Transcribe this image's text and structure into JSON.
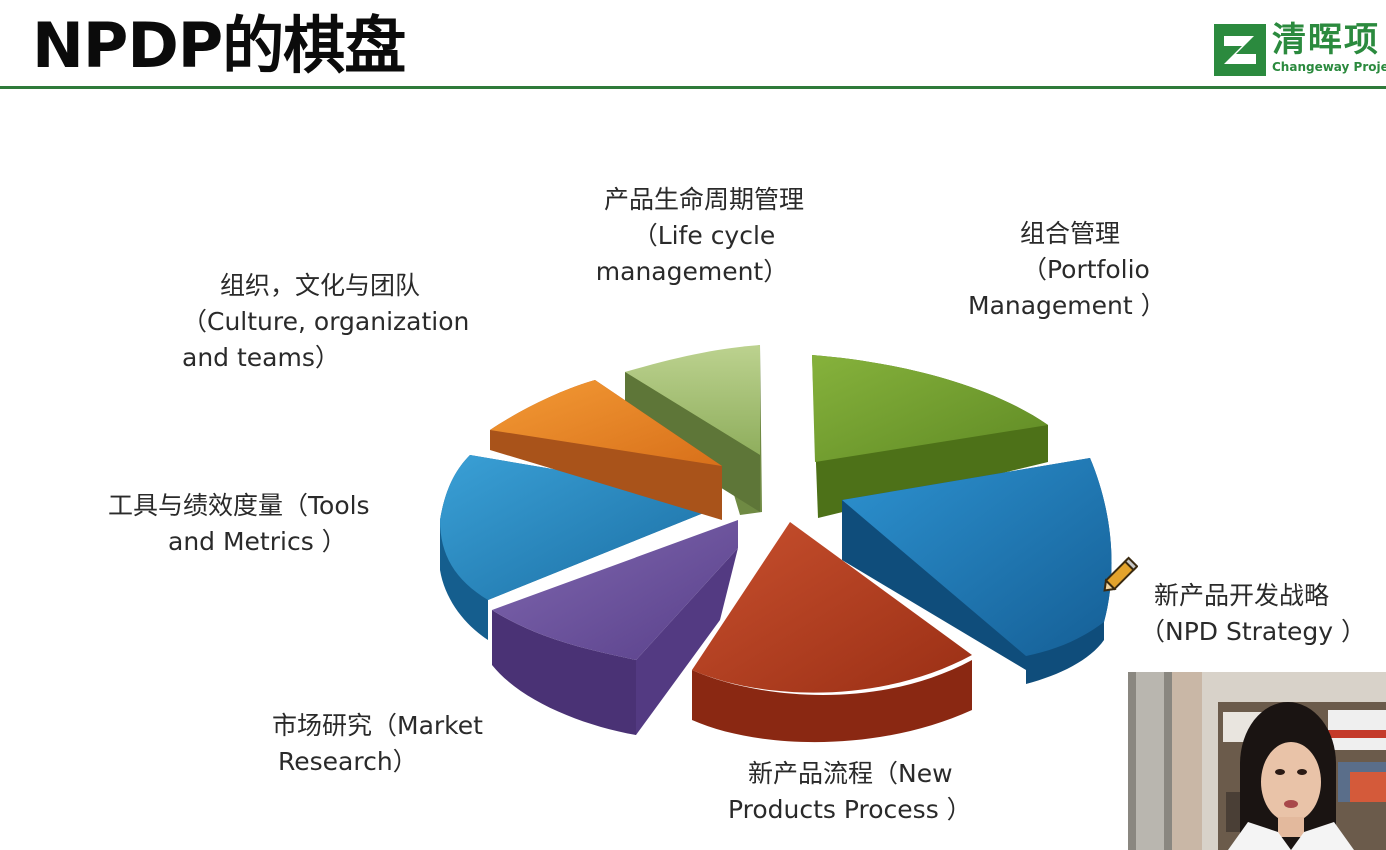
{
  "slide": {
    "title": "NPDP的棋盘",
    "logo": {
      "cn": "清晖项",
      "en": "Changeway Projec"
    }
  },
  "diagram": {
    "type": "exploded-3d-pie",
    "segments": [
      {
        "id": "lifecycle",
        "cn": "产品生命周期管理",
        "en1": "（Life cycle",
        "en2": "management）",
        "color": "#a9c47a"
      },
      {
        "id": "portfolio",
        "cn": "组合管理",
        "en1": "（Portfolio",
        "en2": "Management ）",
        "color": "#6e9a2a"
      },
      {
        "id": "strategy",
        "cn": "新产品开发战略",
        "en1": "（NPD Strategy ）",
        "en2": "",
        "color": "#1f7ab8"
      },
      {
        "id": "process",
        "cn": "新产品流程（New",
        "en1": "Products Process ）",
        "en2": "",
        "color": "#b23a1c"
      },
      {
        "id": "research",
        "cn": "市场研究（Market",
        "en1": "Research）",
        "en2": "",
        "color": "#6a4f9a"
      },
      {
        "id": "tools",
        "cn": "工具与绩效度量（Tools",
        "en1": "and Metrics ）",
        "en2": "",
        "color": "#2585bd"
      },
      {
        "id": "culture",
        "cn": "组织，文化与团队",
        "en1": "（Culture, organization",
        "en2": "and teams）",
        "color": "#e8821e"
      }
    ]
  }
}
